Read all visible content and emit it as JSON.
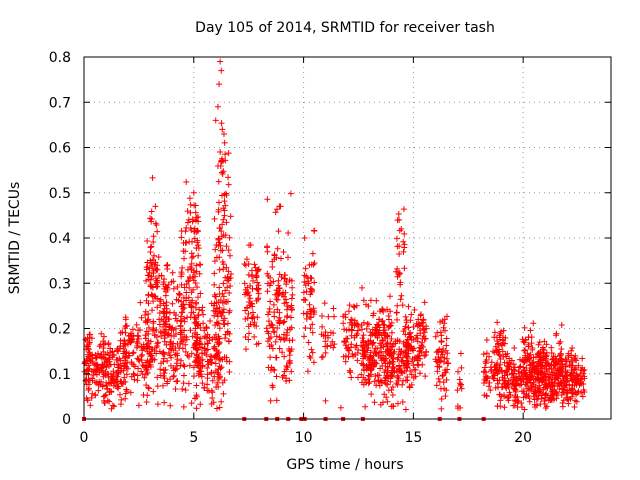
{
  "chart_data": {
    "type": "scatter",
    "title": "Day 105 of 2014, SRMTID for receiver tash",
    "xlabel": "GPS time / hours",
    "ylabel": "SRMTID / TECUs",
    "xlim": [
      0,
      24
    ],
    "ylim": [
      0,
      0.8
    ],
    "x_ticks": [
      0,
      5,
      10,
      15,
      20
    ],
    "x_tick_labels": [
      "0",
      "5",
      "10",
      "15",
      "20"
    ],
    "y_ticks": [
      0,
      0.1,
      0.2,
      0.3,
      0.4,
      0.5,
      0.6,
      0.7,
      0.8
    ],
    "y_tick_labels": [
      "0",
      "0.1",
      "0.2",
      "0.3",
      "0.4",
      "0.5",
      "0.6",
      "0.7",
      "0.8"
    ],
    "grid": true,
    "marker": "plus",
    "color": "#ff0000",
    "series": [
      {
        "name": "SRMTID",
        "clusters": [
          {
            "x_range": [
              0.0,
              2.0
            ],
            "y_mean": 0.11,
            "y_spread": 0.035,
            "count": 240
          },
          {
            "x_range": [
              1.8,
              3.0
            ],
            "y_mean": 0.15,
            "y_spread": 0.04,
            "count": 110
          },
          {
            "x_range": [
              2.8,
              3.8
            ],
            "y_mean": 0.22,
            "y_spread": 0.09,
            "count": 140
          },
          {
            "x_range": [
              3.0,
              3.35
            ],
            "y_mean": 0.37,
            "y_spread": 0.06,
            "count": 25
          },
          {
            "x_range": [
              3.6,
              4.6
            ],
            "y_mean": 0.18,
            "y_spread": 0.06,
            "count": 120
          },
          {
            "x_range": [
              4.4,
              5.3
            ],
            "y_mean": 0.29,
            "y_spread": 0.1,
            "count": 110
          },
          {
            "x_range": [
              4.8,
              5.2
            ],
            "y_mean": 0.43,
            "y_spread": 0.04,
            "count": 20
          },
          {
            "x_range": [
              5.0,
              6.2
            ],
            "y_mean": 0.15,
            "y_spread": 0.05,
            "count": 150
          },
          {
            "x_range": [
              5.9,
              6.7
            ],
            "y_mean": 0.28,
            "y_spread": 0.12,
            "count": 120
          },
          {
            "x_range": [
              6.1,
              6.5
            ],
            "y_mean": 0.5,
            "y_spread": 0.08,
            "count": 22
          },
          {
            "x_range": [
              7.3,
              8.0
            ],
            "y_mean": 0.27,
            "y_spread": 0.06,
            "count": 70
          },
          {
            "x_range": [
              8.3,
              9.5
            ],
            "y_mean": 0.25,
            "y_spread": 0.09,
            "count": 150
          },
          {
            "x_range": [
              10.0,
              10.5
            ],
            "y_mean": 0.25,
            "y_spread": 0.08,
            "count": 55
          },
          {
            "x_range": [
              10.8,
              11.4
            ],
            "y_mean": 0.19,
            "y_spread": 0.03,
            "count": 25
          },
          {
            "x_range": [
              11.8,
              12.5
            ],
            "y_mean": 0.17,
            "y_spread": 0.04,
            "count": 60
          },
          {
            "x_range": [
              12.6,
              14.0
            ],
            "y_mean": 0.15,
            "y_spread": 0.05,
            "count": 220
          },
          {
            "x_range": [
              13.8,
              14.8
            ],
            "y_mean": 0.12,
            "y_spread": 0.04,
            "count": 110
          },
          {
            "x_range": [
              14.2,
              14.6
            ],
            "y_mean": 0.35,
            "y_spread": 0.06,
            "count": 30
          },
          {
            "x_range": [
              14.6,
              15.6
            ],
            "y_mean": 0.16,
            "y_spread": 0.04,
            "count": 110
          },
          {
            "x_range": [
              16.0,
              16.6
            ],
            "y_mean": 0.13,
            "y_spread": 0.05,
            "count": 60
          },
          {
            "x_range": [
              17.0,
              17.2
            ],
            "y_mean": 0.1,
            "y_spread": 0.03,
            "count": 12
          },
          {
            "x_range": [
              18.2,
              19.0
            ],
            "y_mean": 0.1,
            "y_spread": 0.04,
            "count": 70
          },
          {
            "x_range": [
              18.7,
              19.2
            ],
            "y_mean": 0.17,
            "y_spread": 0.02,
            "count": 18
          },
          {
            "x_range": [
              19.0,
              22.8
            ],
            "y_mean": 0.085,
            "y_spread": 0.03,
            "count": 480
          },
          {
            "x_range": [
              20.0,
              21.8
            ],
            "y_mean": 0.13,
            "y_spread": 0.03,
            "count": 110
          }
        ],
        "extra_points": [
          {
            "x": 6.2,
            "y": 0.79
          },
          {
            "x": 6.25,
            "y": 0.77
          },
          {
            "x": 6.15,
            "y": 0.74
          },
          {
            "x": 6.1,
            "y": 0.69
          },
          {
            "x": 6.0,
            "y": 0.66
          },
          {
            "x": 6.3,
            "y": 0.64
          },
          {
            "x": 6.2,
            "y": 0.59
          },
          {
            "x": 6.25,
            "y": 0.57
          },
          {
            "x": 8.9,
            "y": 0.47
          },
          {
            "x": 8.95,
            "y": 0.47
          },
          {
            "x": 3.25,
            "y": 0.47
          },
          {
            "x": 5.0,
            "y": 0.5
          },
          {
            "x": 10.05,
            "y": 0.4
          },
          {
            "x": 14.35,
            "y": 0.44
          },
          {
            "x": 9.2,
            "y": 0.09
          },
          {
            "x": 4.9,
            "y": 0.035
          },
          {
            "x": 8.5,
            "y": 0.04
          },
          {
            "x": 11.0,
            "y": 0.04
          },
          {
            "x": 11.7,
            "y": 0.025
          },
          {
            "x": 2.5,
            "y": 0.03
          }
        ],
        "zero_points_x": [
          0.0,
          7.3,
          8.3,
          8.8,
          9.3,
          9.9,
          10.05,
          11.0,
          11.8,
          12.7,
          16.2,
          17.1,
          18.2
        ]
      }
    ]
  }
}
